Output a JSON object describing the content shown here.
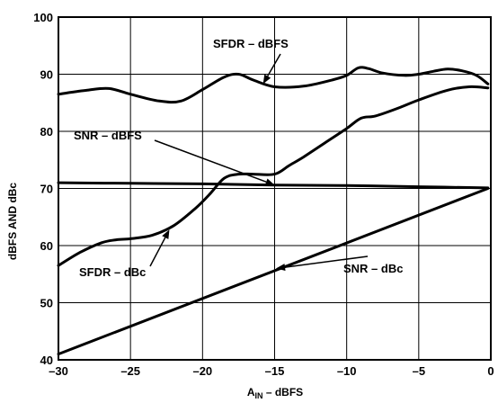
{
  "chart_data": {
    "type": "line",
    "title": "",
    "xlabel_main": "A",
    "xlabel_sub": "IN",
    "xlabel_rest": " – dBFS",
    "ylabel": "dBFS AND dBc",
    "xlim": [
      -30,
      0
    ],
    "ylim": [
      40,
      100
    ],
    "x_ticks": [
      -30,
      -25,
      -20,
      -15,
      -10,
      -5,
      0
    ],
    "y_ticks": [
      40,
      50,
      60,
      70,
      80,
      90,
      100
    ],
    "x_tick_labels": [
      "–30",
      "–25",
      "–20",
      "–15",
      "–10",
      "–5",
      "0"
    ],
    "y_tick_labels": [
      "40",
      "50",
      "60",
      "70",
      "80",
      "90",
      "100"
    ],
    "grid": true,
    "series": [
      {
        "name": "SFDR – dBFS",
        "x": [
          -30,
          -28,
          -26.5,
          -25,
          -23,
          -21.5,
          -20,
          -18.5,
          -17.5,
          -16.5,
          -15,
          -13,
          -11,
          -10,
          -9.2,
          -8.5,
          -7.5,
          -6,
          -5,
          -4,
          -3,
          -2,
          -1,
          -0.2
        ],
        "y": [
          86.5,
          87.2,
          87.5,
          86.5,
          85.3,
          85.3,
          87.3,
          89.5,
          90.0,
          89.0,
          87.8,
          87.9,
          89.0,
          89.8,
          91.1,
          91.0,
          90.2,
          89.8,
          90.0,
          90.5,
          90.9,
          90.6,
          89.8,
          88.3
        ]
      },
      {
        "name": "SNR – dBFS",
        "x": [
          -30,
          -25,
          -20,
          -15,
          -10,
          -5,
          -0.2
        ],
        "y": [
          71.0,
          70.9,
          70.8,
          70.6,
          70.5,
          70.3,
          70.1
        ]
      },
      {
        "name": "SFDR – dBc",
        "x": [
          -30,
          -28.5,
          -27,
          -26,
          -25,
          -23.5,
          -22,
          -20.5,
          -19.5,
          -18.5,
          -17.5,
          -16.5,
          -15,
          -14,
          -13,
          -11.5,
          -10,
          -9,
          -8,
          -6.5,
          -5,
          -3,
          -1.5,
          -0.2
        ],
        "y": [
          56.5,
          58.8,
          60.5,
          61.0,
          61.2,
          61.8,
          63.5,
          66.5,
          69.0,
          71.8,
          72.5,
          72.5,
          72.5,
          74.0,
          75.5,
          78.0,
          80.5,
          82.3,
          82.7,
          84.0,
          85.5,
          87.2,
          87.8,
          87.6
        ]
      },
      {
        "name": "SNR – dBc",
        "x": [
          -30,
          -0.2
        ],
        "y": [
          41.0,
          70.0
        ]
      }
    ],
    "annotations": [
      {
        "text": "SFDR – dBFS",
        "target_x": -15.8,
        "target_y": 88.3
      },
      {
        "text": "SNR – dBFS",
        "target_x": -15.0,
        "target_y": 70.6
      },
      {
        "text": "SFDR – dBc",
        "target_x": -22.3,
        "target_y": 62.8
      },
      {
        "text": "SNR – dBc",
        "target_x": -14.9,
        "target_y": 56.0
      }
    ]
  }
}
